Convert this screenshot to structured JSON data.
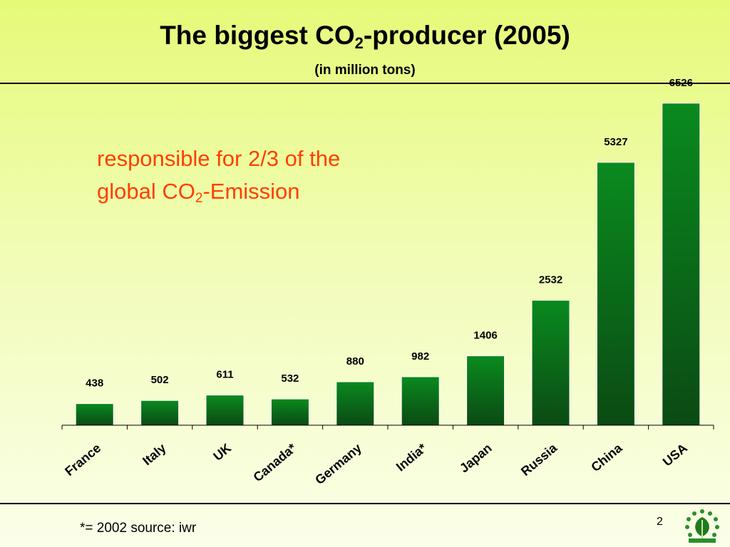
{
  "slide": {
    "title_main": "The biggest CO",
    "title_sub": "2",
    "title_rest": "-producer (2005)",
    "subtitle": "(in million tons)",
    "annotation_line1": "responsible for 2/3 of the",
    "annotation_line2_pre": "global CO",
    "annotation_line2_sub": "2",
    "annotation_line2_post": "-Emission",
    "footnote": "*= 2002 source: iwr",
    "page_number": "2"
  },
  "colors": {
    "annotation": "#ff4000",
    "bar_top": "#0a8a1e",
    "bar_bottom": "#0b4a14"
  },
  "chart_data": {
    "type": "bar",
    "title": "The biggest CO2-producer (2005)",
    "subtitle": "(in million tons)",
    "categories": [
      "France",
      "Italy",
      "UK",
      "Canada*",
      "Germany",
      "India*",
      "Japan",
      "Russia",
      "China",
      "USA"
    ],
    "values": [
      438,
      502,
      611,
      532,
      880,
      982,
      1406,
      2532,
      5327,
      6526
    ],
    "ylim": [
      0,
      7000
    ],
    "grid": false,
    "legend": "none",
    "data_labels": true
  }
}
